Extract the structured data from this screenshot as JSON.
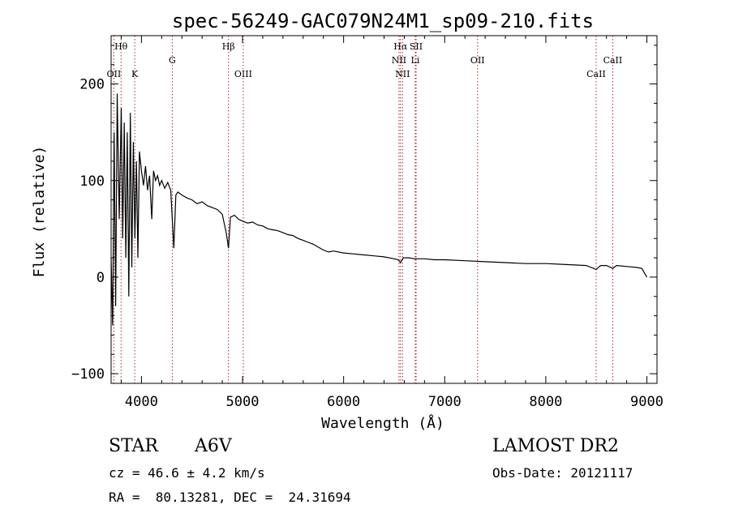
{
  "chart_data": {
    "type": "line",
    "title": "spec-56249-GAC079N24M1_sp09-210.fits",
    "xlabel": "Wavelength (Å)",
    "ylabel": "Flux (relative)",
    "xlim": [
      3700,
      9100
    ],
    "ylim": [
      -110,
      250
    ],
    "x_ticks": [
      4000,
      5000,
      6000,
      7000,
      8000,
      9000
    ],
    "y_ticks": [
      -100,
      0,
      100,
      200
    ],
    "grid": false,
    "line_color": "#000000",
    "marker_color": "#b22222",
    "series": [
      {
        "x": [
          3700,
          3715,
          3730,
          3745,
          3760,
          3780,
          3800,
          3815,
          3830,
          3845,
          3860,
          3875,
          3890,
          3905,
          3920,
          3935,
          3950,
          3965,
          3980,
          4000,
          4020,
          4040,
          4060,
          4080,
          4102,
          4120,
          4140,
          4160,
          4180,
          4200,
          4230,
          4260,
          4290,
          4320,
          4340,
          4360,
          4400,
          4450,
          4500,
          4550,
          4600,
          4650,
          4700,
          4750,
          4800,
          4840,
          4861,
          4880,
          4920,
          4960,
          5000,
          5050,
          5100,
          5150,
          5200,
          5250,
          5300,
          5350,
          5400,
          5450,
          5500,
          5550,
          5600,
          5650,
          5700,
          5750,
          5800,
          5850,
          5900,
          6000,
          6100,
          6200,
          6300,
          6400,
          6500,
          6540,
          6563,
          6590,
          6650,
          6700,
          6800,
          6900,
          7000,
          7200,
          7400,
          7600,
          7800,
          8000,
          8200,
          8400,
          8498,
          8542,
          8600,
          8662,
          8700,
          8800,
          8900,
          8950,
          9000
        ],
        "values": [
          20,
          -50,
          150,
          -30,
          190,
          60,
          175,
          40,
          160,
          20,
          150,
          -20,
          170,
          10,
          140,
          40,
          120,
          20,
          130,
          110,
          95,
          115,
          90,
          105,
          60,
          110,
          100,
          105,
          95,
          100,
          92,
          98,
          90,
          30,
          85,
          88,
          85,
          82,
          80,
          76,
          78,
          74,
          72,
          70,
          65,
          45,
          30,
          62,
          64,
          60,
          58,
          56,
          57,
          54,
          53,
          50,
          49,
          48,
          46,
          44,
          43,
          40,
          38,
          36,
          34,
          31,
          28,
          26,
          27,
          25,
          24,
          23,
          22,
          21,
          19,
          18,
          15,
          20,
          20,
          19,
          19,
          18,
          18,
          17,
          16,
          15,
          14,
          14,
          13,
          12,
          8,
          12,
          12,
          9,
          12,
          11,
          10,
          9,
          0
        ]
      }
    ],
    "lines": [
      {
        "label": "Hθ",
        "wavelength": 3798,
        "row": 1
      },
      {
        "label": "OII",
        "wavelength": 3727,
        "row": 3
      },
      {
        "label": "K",
        "wavelength": 3934,
        "row": 3
      },
      {
        "label": "G",
        "wavelength": 4305,
        "row": 2
      },
      {
        "label": "Hβ",
        "wavelength": 4861,
        "row": 1
      },
      {
        "label": "OIII",
        "wavelength": 5007,
        "row": 3
      },
      {
        "label": "Hα",
        "wavelength": 6563,
        "row": 1
      },
      {
        "label": "SII",
        "wavelength": 6717,
        "row": 1
      },
      {
        "label": "NII",
        "wavelength": 6548,
        "row": 2
      },
      {
        "label": "Li",
        "wavelength": 6708,
        "row": 2
      },
      {
        "label": "NII",
        "wavelength": 6583,
        "row": 3
      },
      {
        "label": "OII",
        "wavelength": 7325,
        "row": 2
      },
      {
        "label": "CaII",
        "wavelength": 8498,
        "row": 3
      },
      {
        "label": "CaII",
        "wavelength": 8662,
        "row": 2
      }
    ]
  },
  "info": {
    "class_label": "STAR",
    "subclass": "A6V",
    "survey": "LAMOST DR2",
    "cz": "cz = 46.6 ± 4.2 km/s",
    "obs_date": "Obs-Date: 20121117",
    "coords": "RA =  80.13281, DEC =  24.31694"
  }
}
